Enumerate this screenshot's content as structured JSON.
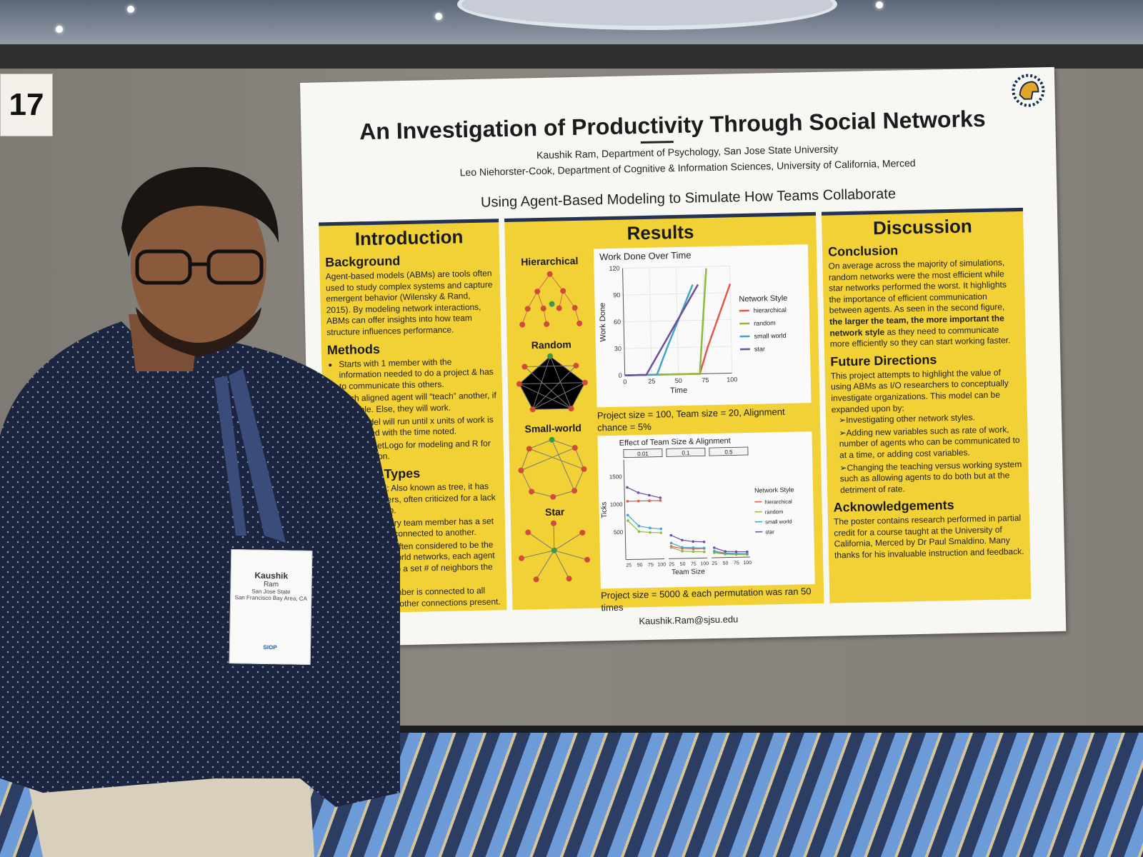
{
  "booth_number": "17",
  "poster": {
    "title": "An Investigation of Productivity Through Social Networks",
    "authors": [
      "Kaushik Ram, Department of Psychology, San Jose State University",
      "Leo Niehorster-Cook, Department of Cognitive & Information Sciences, University of California, Merced"
    ],
    "subtitle": "Using Agent-Based Modeling to Simulate How Teams Collaborate",
    "introduction": {
      "heading": "Introduction",
      "background_heading": "Background",
      "background_text": "Agent-based models (ABMs) are tools often used to study complex systems and capture emergent behavior (Wilensky & Rand, 2015). By modeling network interactions, ABMs can offer insights into how team structure influences performance.",
      "methods_heading": "Methods",
      "methods": [
        "Starts with 1 member with the information needed to do a project & has to communicate this others.",
        "Each aligned agent will “teach” another, if possible. Else, they will work.",
        "The model will run until x units of work is completed with the time noted.",
        "Utilized NetLogo for modeling and R for visualization."
      ],
      "network_types_heading": "Network Types",
      "network_types": [
        "Hierarchical: Also known as tree, it has team members, often criticized for a lack of information.",
        "Random: Every team member has a set chance to be connected to another.",
        "Small-world: Often considered to be the most of real-world networks, each agent is connected to a set # of neighbors the other side.",
        "Star: One member is connected to all others with no other connections present."
      ]
    },
    "results": {
      "heading": "Results",
      "network_labels": [
        "Hierarchical",
        "Random",
        "Small-world",
        "Star"
      ],
      "caption1": "Project size = 100, Team size = 20, Alignment chance = 5%",
      "caption2": "Project size = 5000 & each permutation was ran 50 times"
    },
    "discussion": {
      "heading": "Discussion",
      "conclusion_heading": "Conclusion",
      "conclusion_text_a": "On average across the majority of simulations, random networks were the most efficient while star networks performed the worst. It highlights the importance of efficient communication between agents. As seen in the second figure, ",
      "conclusion_bold": "the larger the team, the more important the network style",
      "conclusion_text_b": " as they need to communicate more efficiently so they can start working faster.",
      "future_heading": "Future Directions",
      "future_text": "This project attempts to highlight the value of using ABMs as I/O researchers to conceptually investigate organizations. This model can be expanded upon by:",
      "future_items": [
        "Investigating other network styles.",
        "Adding new variables such as rate of work, number of agents who can be communicated to at a time, or adding cost variables.",
        "Changing the teaching versus working system such as allowing agents to do both but at the detriment of rate."
      ],
      "ack_heading": "Acknowledgements",
      "ack_text": "The poster contains research performed in partial credit for a course taught at the University of California, Merced by Dr Paul Smaldino. Many thanks for his invaluable instruction and feedback."
    },
    "email": "Kaushik.Ram@sjsu.edu"
  },
  "badge": {
    "first": "Kaushik",
    "last": "Ram",
    "org": "San Jose State",
    "location": "San Francisco Bay Area, CA",
    "event": "SIOP"
  },
  "chart_data": [
    {
      "type": "line",
      "title": "Work Done Over Time",
      "xlabel": "Time",
      "ylabel": "Work Done",
      "xlim": [
        0,
        100
      ],
      "ylim": [
        0,
        120
      ],
      "xticks": [
        0,
        25,
        50,
        75,
        100
      ],
      "yticks": [
        0,
        30,
        60,
        90,
        120
      ],
      "legend_title": "Network Style",
      "legend_position": "right",
      "series": [
        {
          "name": "hierarchical",
          "color": "#e4574c",
          "x": [
            0,
            70,
            78,
            100
          ],
          "y": [
            0,
            0,
            30,
            100
          ]
        },
        {
          "name": "random",
          "color": "#8fb83e",
          "x": [
            0,
            70,
            74,
            78
          ],
          "y": [
            0,
            0,
            60,
            118
          ]
        },
        {
          "name": "small world",
          "color": "#3ea6c9",
          "x": [
            0,
            30,
            40,
            65
          ],
          "y": [
            0,
            0,
            30,
            100
          ]
        },
        {
          "name": "star",
          "color": "#6c4f9b",
          "x": [
            0,
            20,
            30,
            70
          ],
          "y": [
            0,
            0,
            20,
            100
          ]
        }
      ]
    },
    {
      "type": "line",
      "title": "Effect of Team Size & Alignment",
      "xlabel": "Team Size",
      "ylabel": "Ticks",
      "panels": [
        "0.01",
        "0.1",
        "0.5"
      ],
      "xticks": [
        25,
        50,
        75,
        100
      ],
      "yticks": [
        500,
        1000,
        1500
      ],
      "ylim": [
        0,
        1800
      ],
      "legend_title": "Network Style",
      "legend_position": "right",
      "series": [
        {
          "name": "hierarchical",
          "color": "#e4574c",
          "values": [
            [
              1050,
              1050,
              1050,
              1050
            ],
            [
              220,
              180,
              170,
              170
            ],
            [
              110,
              70,
              60,
              55
            ]
          ]
        },
        {
          "name": "random",
          "color": "#8fb83e",
          "values": [
            [
              700,
              500,
              480,
              470
            ],
            [
              200,
              130,
              120,
              110
            ],
            [
              90,
              60,
              50,
              45
            ]
          ]
        },
        {
          "name": "small world",
          "color": "#3ea6c9",
          "values": [
            [
              800,
              600,
              560,
              540
            ],
            [
              280,
              200,
              190,
              180
            ],
            [
              120,
              80,
              70,
              60
            ]
          ]
        },
        {
          "name": "star",
          "color": "#6c4f9b",
          "values": [
            [
              1300,
              1200,
              1150,
              1100
            ],
            [
              420,
              330,
              300,
              290
            ],
            [
              180,
              110,
              100,
              95
            ]
          ]
        }
      ]
    }
  ]
}
